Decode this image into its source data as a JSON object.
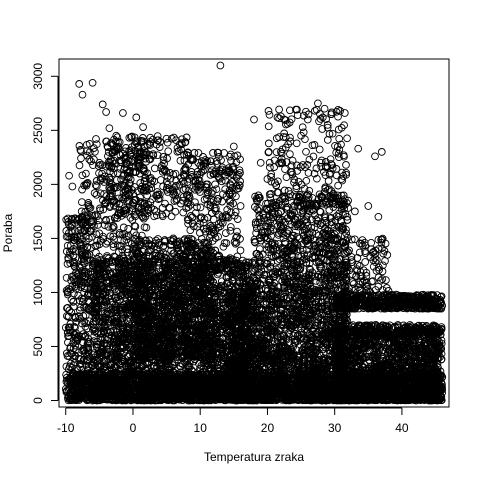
{
  "chart_data": {
    "type": "scatter",
    "xlabel": "Temperatura zraka",
    "ylabel": "Poraba",
    "xlim": [
      -11,
      47
    ],
    "ylim": [
      -60,
      3160
    ],
    "x_ticks": [
      -10,
      0,
      10,
      20,
      30,
      40
    ],
    "y_ticks": [
      0,
      500,
      1000,
      1500,
      2000,
      2500,
      3000
    ],
    "grid": false,
    "marker": "open-circle",
    "series": [
      {
        "values": [
          [
            -8.0,
            2930
          ],
          [
            -7.5,
            2830
          ],
          [
            -6.0,
            2940
          ],
          [
            -5.5,
            2420
          ],
          [
            -4.5,
            2740
          ],
          [
            -4.0,
            2670
          ],
          [
            -3.5,
            2520
          ],
          [
            -2.5,
            2450
          ],
          [
            -1.5,
            2660
          ],
          [
            0.5,
            2620
          ],
          [
            1.5,
            2530
          ],
          [
            3.0,
            2280
          ],
          [
            4.5,
            2140
          ],
          [
            6.0,
            2090
          ],
          [
            13.0,
            3100
          ],
          [
            15.0,
            2350
          ],
          [
            18.0,
            2600
          ],
          [
            21.5,
            2620
          ],
          [
            23.0,
            2560
          ],
          [
            24.5,
            2640
          ],
          [
            26.0,
            2600
          ],
          [
            27.5,
            2750
          ],
          [
            28.5,
            2700
          ],
          [
            29.5,
            2650
          ],
          [
            30.5,
            2690
          ],
          [
            31.5,
            2660
          ],
          [
            33.5,
            2330
          ],
          [
            36.0,
            2260
          ],
          [
            37.0,
            2300
          ],
          [
            35.0,
            1800
          ],
          [
            36.5,
            1700
          ],
          [
            -9.5,
            2080
          ],
          [
            -9.0,
            1980
          ],
          [
            -7.0,
            2100
          ],
          [
            -3.0,
            2300
          ],
          [
            -1.0,
            2200
          ],
          [
            1.0,
            2100
          ],
          [
            2.5,
            2050
          ],
          [
            5.0,
            1950
          ],
          [
            8.0,
            1900
          ],
          [
            10.0,
            2000
          ],
          [
            12.0,
            1850
          ],
          [
            14.0,
            1700
          ],
          [
            16.0,
            1800
          ],
          [
            19.0,
            2200
          ],
          [
            20.0,
            2050
          ],
          [
            22.0,
            2300
          ],
          [
            25.0,
            2450
          ],
          [
            27.0,
            2100
          ],
          [
            29.0,
            1950
          ],
          [
            31.0,
            2050
          ],
          [
            32.0,
            1850
          ],
          [
            33.0,
            1750
          ],
          [
            -8.5,
            1500
          ],
          [
            -6.5,
            1350
          ],
          [
            -4.0,
            1450
          ],
          [
            -2.0,
            1550
          ],
          [
            0.0,
            1400
          ],
          [
            2.0,
            1600
          ],
          [
            6.0,
            1500
          ],
          [
            9.0,
            1450
          ],
          [
            11.0,
            1350
          ],
          [
            13.5,
            1300
          ],
          [
            17.0,
            1250
          ],
          [
            20.5,
            1400
          ],
          [
            23.5,
            1500
          ],
          [
            26.5,
            1600
          ],
          [
            28.0,
            1450
          ],
          [
            30.0,
            1350
          ],
          [
            32.5,
            1300
          ],
          [
            34.0,
            1150
          ],
          [
            35.5,
            1100
          ]
        ]
      }
    ],
    "clusters": [
      {
        "x": [
          -10,
          -6
        ],
        "y": [
          0,
          1700
        ],
        "n": 300,
        "dense": false
      },
      {
        "x": [
          -8,
          2
        ],
        "y": [
          800,
          2400
        ],
        "n": 420,
        "dense": false
      },
      {
        "x": [
          -4,
          8
        ],
        "y": [
          1700,
          2450
        ],
        "n": 260,
        "dense": false
      },
      {
        "x": [
          -6,
          18
        ],
        "y": [
          0,
          1300
        ],
        "n": 2600,
        "dense": true
      },
      {
        "x": [
          0,
          12
        ],
        "y": [
          400,
          1500
        ],
        "n": 900,
        "dense": true
      },
      {
        "x": [
          8,
          16
        ],
        "y": [
          1200,
          2300
        ],
        "n": 300,
        "dense": false
      },
      {
        "x": [
          14,
          32
        ],
        "y": [
          0,
          1000
        ],
        "n": 2000,
        "dense": true
      },
      {
        "x": [
          18,
          32
        ],
        "y": [
          1000,
          1900
        ],
        "n": 700,
        "dense": true
      },
      {
        "x": [
          20,
          32
        ],
        "y": [
          1800,
          2700
        ],
        "n": 180,
        "dense": false
      },
      {
        "x": [
          30,
          46
        ],
        "y": [
          850,
          980
        ],
        "n": 500,
        "dense": true
      },
      {
        "x": [
          30,
          46
        ],
        "y": [
          600,
          700
        ],
        "n": 320,
        "dense": true
      },
      {
        "x": [
          30,
          46
        ],
        "y": [
          0,
          600
        ],
        "n": 1400,
        "dense": true
      },
      {
        "x": [
          -10,
          46
        ],
        "y": [
          0,
          250
        ],
        "n": 2500,
        "dense": true
      },
      {
        "x": [
          30,
          38
        ],
        "y": [
          1000,
          1500
        ],
        "n": 120,
        "dense": false
      }
    ]
  }
}
